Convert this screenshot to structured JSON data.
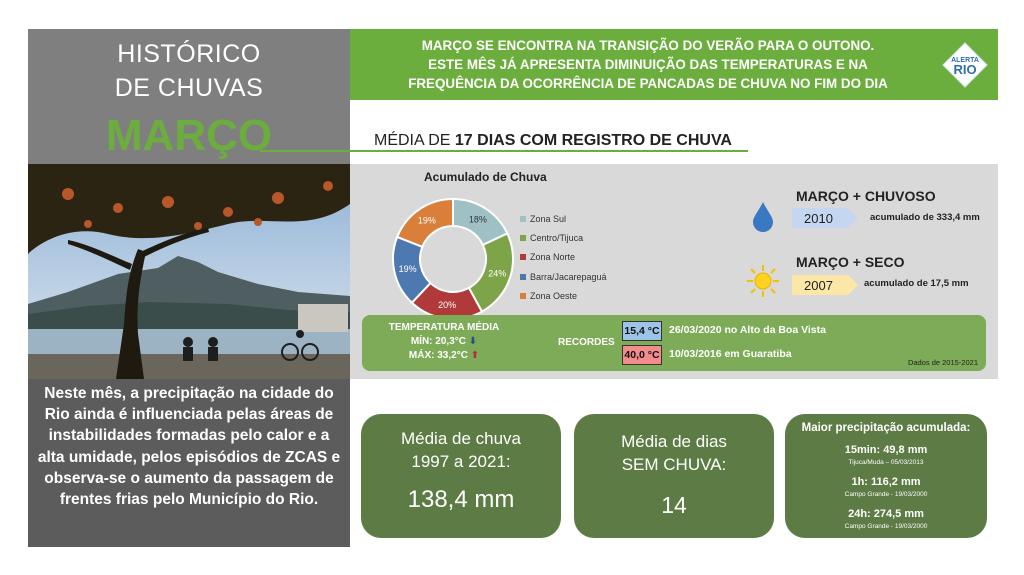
{
  "header": {
    "title_line1": "HISTÓRICO",
    "title_line2": "DE CHUVAS",
    "month": "MARÇO",
    "banner_lines": [
      "MARÇO SE ENCONTRA NA TRANSIÇÃO DO VERÃO PARA O OUTONO.",
      "ESTE MÊS JÁ APRESENTA DIMINUIÇÃO DAS TEMPERATURAS E NA",
      "FREQUÊNCIA DA OCORRÊNCIA DE PANCADAS DE CHUVA NO FIM DO DIA"
    ],
    "logo_top": "ALERTA",
    "logo_bottom": "RIO"
  },
  "avg_days": {
    "prefix": "MÉDIA DE ",
    "bold": "17 DIAS COM REGISTRO DE CHUVA"
  },
  "description": "Neste mês, a precipitação na cidade do Rio ainda é influenciada pelas áreas de instabilidades formadas pelo calor e a alta umidade, pelos episódios de ZCAS e observa-se  o aumento da passagem de frentes frias pelo Município do Rio.",
  "chart_data": {
    "type": "pie",
    "title": "Acumulado de Chuva",
    "categories": [
      "Zona Sul",
      "Centro/Tijuca",
      "Zona Norte",
      "Barra/Jacarepaguá",
      "Zona Oeste"
    ],
    "values": [
      18,
      24,
      20,
      19,
      19
    ],
    "labels": [
      "18%",
      "24%",
      "20%",
      "19%",
      "19%"
    ],
    "colors": [
      "#9fc1c6",
      "#7ea44a",
      "#b03a3a",
      "#4e78b0",
      "#d97f3a"
    ]
  },
  "records": {
    "wettest": {
      "title": "MARÇO + CHUVOSO",
      "year": "2010",
      "note": "acumulado de 333,4 mm"
    },
    "driest": {
      "title": "MARÇO + SECO",
      "year": "2007",
      "note": "acumulado de 17,5 mm"
    }
  },
  "temperature": {
    "label": "TEMPERATURA MÉDIA",
    "min": "MÍN: 20,3°C",
    "max": "MÁX: 33,2°C",
    "records_label": "RECORDES",
    "low_value": "15,4 °C",
    "low_text": "26/03/2020 no Alto da Boa Vista",
    "high_value": "40,0 °C",
    "high_text": "10/03/2016 em Guaratiba",
    "source": "Dados de 2015-2021"
  },
  "boxes": {
    "avg_rain": {
      "line1": "Média de chuva",
      "line2": "1997 a 2021:",
      "value": "138,4 mm"
    },
    "dry_days": {
      "line1": "Média  de dias",
      "line2": "SEM CHUVA:",
      "value": "14"
    },
    "max_precip": {
      "title": "Maior precipitação acumulada:",
      "items": [
        {
          "value": "15min: 49,8 mm",
          "place": "Tijuca/Muda – 05/03/2013"
        },
        {
          "value": "1h: 116,2 mm",
          "place": "Campo Grande - 19/03/2000"
        },
        {
          "value": "24h: 274,5 mm",
          "place": "Campo Grande - 19/03/2000"
        }
      ]
    }
  }
}
